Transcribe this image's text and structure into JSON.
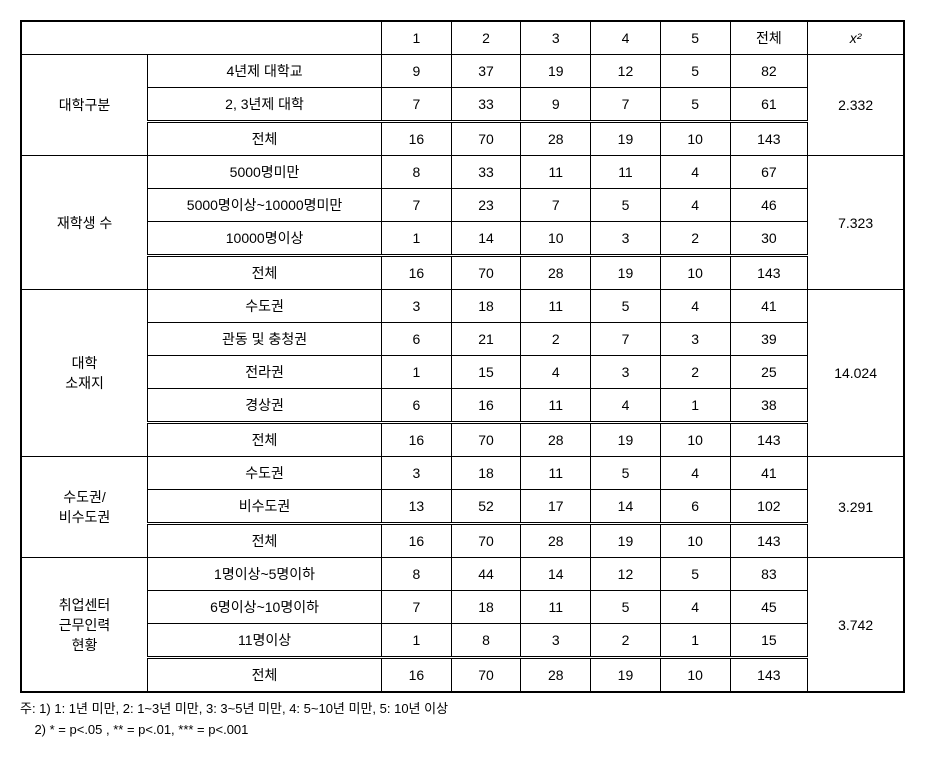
{
  "header": {
    "cols": [
      "1",
      "2",
      "3",
      "4",
      "5"
    ],
    "total": "전체",
    "chi": "x²"
  },
  "groups": [
    {
      "name": "대학구분",
      "rows": [
        {
          "label": "4년제 대학교",
          "vals": [
            "9",
            "37",
            "19",
            "12",
            "5",
            "82"
          ]
        },
        {
          "label": "2, 3년제 대학",
          "vals": [
            "7",
            "33",
            "9",
            "7",
            "5",
            "61"
          ]
        },
        {
          "label": "전체",
          "vals": [
            "16",
            "70",
            "28",
            "19",
            "10",
            "143"
          ],
          "total": true
        }
      ],
      "chi": "2.332"
    },
    {
      "name": "재학생 수",
      "rows": [
        {
          "label": "5000명미만",
          "vals": [
            "8",
            "33",
            "11",
            "11",
            "4",
            "67"
          ]
        },
        {
          "label": "5000명이상~10000명미만",
          "vals": [
            "7",
            "23",
            "7",
            "5",
            "4",
            "46"
          ]
        },
        {
          "label": "10000명이상",
          "vals": [
            "1",
            "14",
            "10",
            "3",
            "2",
            "30"
          ]
        },
        {
          "label": "전체",
          "vals": [
            "16",
            "70",
            "28",
            "19",
            "10",
            "143"
          ],
          "total": true
        }
      ],
      "chi": "7.323"
    },
    {
      "name": "대학\n소재지",
      "rows": [
        {
          "label": "수도권",
          "vals": [
            "3",
            "18",
            "11",
            "5",
            "4",
            "41"
          ]
        },
        {
          "label": "관동 및 충청권",
          "vals": [
            "6",
            "21",
            "2",
            "7",
            "3",
            "39"
          ]
        },
        {
          "label": "전라권",
          "vals": [
            "1",
            "15",
            "4",
            "3",
            "2",
            "25"
          ]
        },
        {
          "label": "경상권",
          "vals": [
            "6",
            "16",
            "11",
            "4",
            "1",
            "38"
          ]
        },
        {
          "label": "전체",
          "vals": [
            "16",
            "70",
            "28",
            "19",
            "10",
            "143"
          ],
          "total": true
        }
      ],
      "chi": "14.024"
    },
    {
      "name": "수도권/\n비수도권",
      "rows": [
        {
          "label": "수도권",
          "vals": [
            "3",
            "18",
            "11",
            "5",
            "4",
            "41"
          ]
        },
        {
          "label": "비수도권",
          "vals": [
            "13",
            "52",
            "17",
            "14",
            "6",
            "102"
          ]
        },
        {
          "label": "전체",
          "vals": [
            "16",
            "70",
            "28",
            "19",
            "10",
            "143"
          ],
          "total": true
        }
      ],
      "chi": "3.291"
    },
    {
      "name": "취업센터\n근무인력\n현황",
      "rows": [
        {
          "label": "1명이상~5명이하",
          "vals": [
            "8",
            "44",
            "14",
            "12",
            "5",
            "83"
          ]
        },
        {
          "label": "6명이상~10명이하",
          "vals": [
            "7",
            "18",
            "11",
            "5",
            "4",
            "45"
          ]
        },
        {
          "label": "11명이상",
          "vals": [
            "1",
            "8",
            "3",
            "2",
            "1",
            "15"
          ]
        },
        {
          "label": "전체",
          "vals": [
            "16",
            "70",
            "28",
            "19",
            "10",
            "143"
          ],
          "total": true
        }
      ],
      "chi": "3.742"
    }
  ],
  "footnotes": [
    "주: 1) 1: 1년 미만, 2: 1~3년 미만, 3: 3~5년 미만, 4: 5~10년 미만, 5: 10년 이상",
    "    2) * = p<.05 , ** = p<.01, *** = p<.001"
  ]
}
